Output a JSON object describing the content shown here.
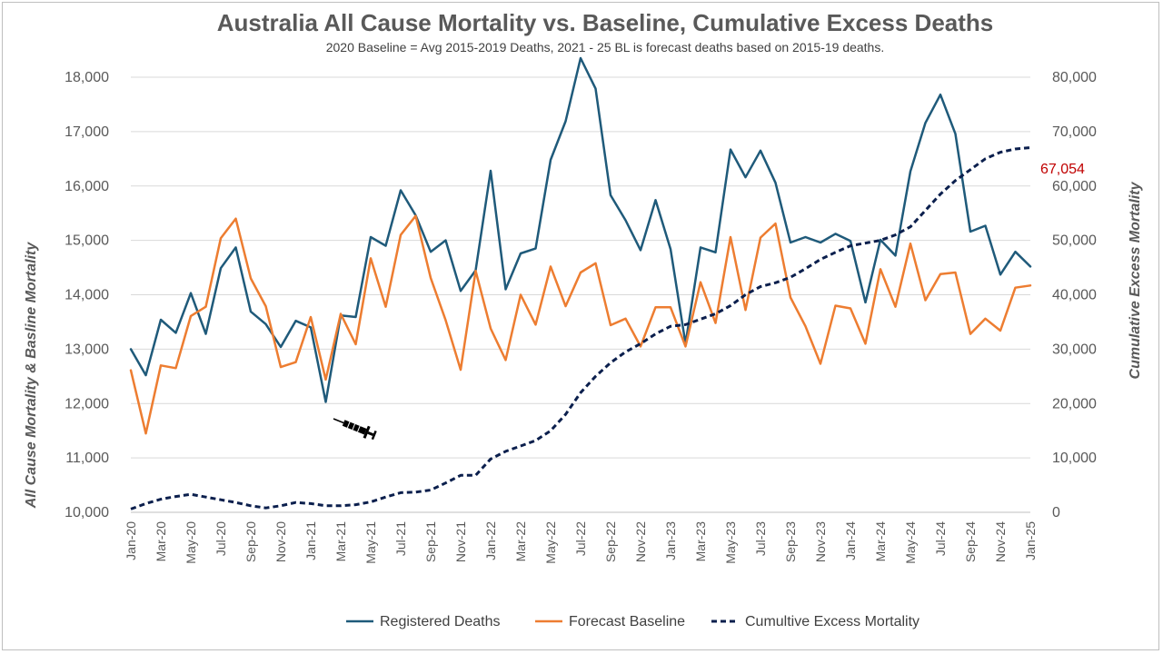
{
  "chart_data": {
    "type": "line",
    "title": "Australia All Cause Mortality vs. Baseline, Cumulative Excess Deaths",
    "subtitle": "2020 Baseline = Avg 2015-2019 Deaths, 2021 - 25 BL is forecast deaths based on 2015-19 deaths.",
    "ylabel_left": "All Cause Mortality & Basline Mortality",
    "ylabel_right": "Cumulative Excess Mortality",
    "ylim_left": [
      10000,
      18000
    ],
    "ylim_right": [
      0,
      80000
    ],
    "yticks_left": [
      "10,000",
      "11,000",
      "12,000",
      "13,000",
      "14,000",
      "15,000",
      "16,000",
      "17,000",
      "18,000"
    ],
    "yticks_right": [
      "0",
      "10,000",
      "20,000",
      "30,000",
      "40,000",
      "50,000",
      "60,000",
      "70,000",
      "80,000"
    ],
    "x": [
      "Jan-20",
      "Feb-20",
      "Mar-20",
      "Apr-20",
      "May-20",
      "Jun-20",
      "Jul-20",
      "Aug-20",
      "Sep-20",
      "Oct-20",
      "Nov-20",
      "Dec-20",
      "Jan-21",
      "Feb-21",
      "Mar-21",
      "Apr-21",
      "May-21",
      "Jun-21",
      "Jul-21",
      "Aug-21",
      "Sep-21",
      "Oct-21",
      "Nov-21",
      "Dec-21",
      "Jan-22",
      "Feb-22",
      "Mar-22",
      "Apr-22",
      "May-22",
      "Jun-22",
      "Jul-22",
      "Aug-22",
      "Sep-22",
      "Oct-22",
      "Nov-22",
      "Dec-22",
      "Jan-23",
      "Feb-23",
      "Mar-23",
      "Apr-23",
      "May-23",
      "Jun-23",
      "Jul-23",
      "Aug-23",
      "Sep-23",
      "Oct-23",
      "Nov-23",
      "Dec-23",
      "Jan-24",
      "Feb-24",
      "Mar-24",
      "Apr-24",
      "May-24",
      "Jun-24",
      "Jul-24",
      "Aug-24",
      "Sep-24",
      "Oct-24",
      "Nov-24",
      "Dec-24",
      "Jan-25"
    ],
    "x_tick_labels": [
      "Jan-20",
      "Mar-20",
      "May-20",
      "Jul-20",
      "Sep-20",
      "Nov-20",
      "Jan-21",
      "Mar-21",
      "May-21",
      "Jul-21",
      "Sep-21",
      "Nov-21",
      "Jan-22",
      "Mar-22",
      "May-22",
      "Jul-22",
      "Sep-22",
      "Nov-22",
      "Jan-23",
      "Mar-23",
      "May-23",
      "Jul-23",
      "Sep-23",
      "Nov-23",
      "Jan-24",
      "Mar-24",
      "May-24",
      "Jul-24",
      "Sep-24",
      "Nov-24",
      "Jan-25"
    ],
    "grid": true,
    "legend_position": "bottom",
    "series": [
      {
        "name": "Registered Deaths",
        "axis": "left",
        "color": "#1f5a7a",
        "dash": "solid",
        "values": [
          13000,
          12520,
          13540,
          13300,
          14030,
          13280,
          14490,
          14870,
          13690,
          13460,
          13040,
          13520,
          13400,
          12030,
          13620,
          13590,
          15060,
          14900,
          15920,
          15460,
          14790,
          15000,
          14070,
          14450,
          16280,
          14100,
          14760,
          14850,
          16480,
          17190,
          18350,
          17790,
          15830,
          15370,
          14820,
          15740,
          14840,
          13100,
          14870,
          14780,
          16670,
          16160,
          16650,
          16060,
          14960,
          15060,
          14960,
          15120,
          14990,
          13860,
          15010,
          14720,
          16270,
          17160,
          17680,
          16960,
          15160,
          15270,
          14370,
          14790,
          14520
        ]
      },
      {
        "name": "Forecast Baseline",
        "axis": "left",
        "color": "#ed7d31",
        "dash": "solid",
        "values": [
          12610,
          11450,
          12700,
          12650,
          13610,
          13780,
          15040,
          15400,
          14300,
          13790,
          12670,
          12760,
          13590,
          12440,
          13650,
          13090,
          14670,
          13780,
          15100,
          15450,
          14310,
          13530,
          12620,
          14440,
          13380,
          12800,
          14000,
          13450,
          14520,
          13790,
          14410,
          14580,
          13440,
          13560,
          13050,
          13770,
          13770,
          13050,
          14230,
          13480,
          15060,
          13720,
          15050,
          15310,
          13950,
          13420,
          12730,
          13800,
          13750,
          13100,
          14470,
          13780,
          14940,
          13900,
          14380,
          14410,
          13280,
          13560,
          13340,
          14130,
          14170
        ]
      },
      {
        "name": "Cumultive Excess Mortality",
        "axis": "right",
        "color": "#0b1f4d",
        "dash": "dashed",
        "values": [
          600,
          1600,
          2400,
          2900,
          3300,
          2800,
          2300,
          1800,
          1200,
          800,
          1200,
          1800,
          1600,
          1200,
          1200,
          1400,
          1900,
          2800,
          3600,
          3700,
          4100,
          5400,
          6800,
          6800,
          9800,
          11200,
          12200,
          13200,
          15000,
          18000,
          22000,
          25000,
          27500,
          29500,
          31000,
          32800,
          34200,
          34500,
          35500,
          36500,
          38000,
          40000,
          41500,
          42200,
          43200,
          44800,
          46500,
          47800,
          49000,
          49500,
          50000,
          51000,
          52500,
          55500,
          58500,
          61000,
          63000,
          65000,
          66200,
          66800,
          67054
        ]
      }
    ],
    "end_label": "67,054"
  }
}
